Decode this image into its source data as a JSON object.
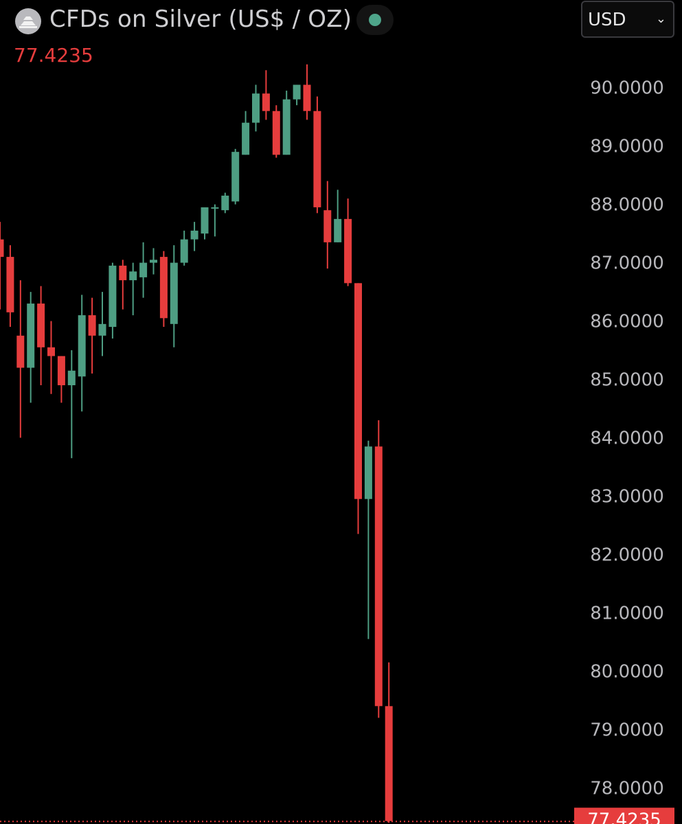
{
  "header": {
    "title": "CFDs on Silver (US$ / OZ)",
    "current_price": "77.4235",
    "currency": "USD",
    "logo_icon": "silver-bars-icon",
    "status_icon": "market-open-dot-icon"
  },
  "colors": {
    "up": "#4e9e83",
    "down": "#e63d3d",
    "price_line": "#e63d3d",
    "status": "#4ea58a"
  },
  "chart_data": {
    "type": "candlestick",
    "ylim": [
      77.25,
      91.15
    ],
    "yticks": [
      "90.0000",
      "89.0000",
      "88.0000",
      "87.0000",
      "86.0000",
      "85.0000",
      "84.0000",
      "83.0000",
      "82.0000",
      "81.0000",
      "80.0000",
      "79.0000",
      "78.0000"
    ],
    "last_price_label": "77.4235",
    "last_price": 77.4235,
    "candles": [
      {
        "o": 87.4,
        "h": 87.7,
        "c": 87.1,
        "l": 86.2
      },
      {
        "o": 87.1,
        "h": 87.3,
        "c": 86.15,
        "l": 85.9
      },
      {
        "o": 85.75,
        "h": 86.7,
        "c": 85.2,
        "l": 84.0
      },
      {
        "o": 85.2,
        "h": 86.5,
        "c": 86.3,
        "l": 84.6
      },
      {
        "o": 86.3,
        "h": 86.6,
        "c": 85.55,
        "l": 84.9
      },
      {
        "o": 85.55,
        "h": 86.0,
        "c": 85.4,
        "l": 84.75
      },
      {
        "o": 85.4,
        "h": 85.4,
        "c": 84.9,
        "l": 84.6
      },
      {
        "o": 84.9,
        "h": 85.5,
        "c": 85.15,
        "l": 83.65
      },
      {
        "o": 85.05,
        "h": 86.45,
        "c": 86.1,
        "l": 84.45
      },
      {
        "o": 86.1,
        "h": 86.4,
        "c": 85.75,
        "l": 85.1
      },
      {
        "o": 85.75,
        "h": 86.5,
        "c": 85.95,
        "l": 85.4
      },
      {
        "o": 85.9,
        "h": 87.0,
        "c": 86.95,
        "l": 85.7
      },
      {
        "o": 86.95,
        "h": 87.05,
        "c": 86.7,
        "l": 86.2
      },
      {
        "o": 86.7,
        "h": 87.0,
        "c": 86.85,
        "l": 86.1
      },
      {
        "o": 86.75,
        "h": 87.35,
        "c": 87.0,
        "l": 86.4
      },
      {
        "o": 87.0,
        "h": 87.25,
        "c": 87.05,
        "l": 86.8
      },
      {
        "o": 87.1,
        "h": 87.2,
        "c": 86.05,
        "l": 85.9
      },
      {
        "o": 85.95,
        "h": 87.3,
        "c": 87.0,
        "l": 85.55
      },
      {
        "o": 87.0,
        "h": 87.55,
        "c": 87.4,
        "l": 86.95
      },
      {
        "o": 87.4,
        "h": 87.7,
        "c": 87.55,
        "l": 87.2
      },
      {
        "o": 87.5,
        "h": 87.9,
        "c": 87.95,
        "l": 87.4
      },
      {
        "o": 87.95,
        "h": 88.0,
        "c": 87.95,
        "l": 87.45
      },
      {
        "o": 87.9,
        "h": 88.2,
        "c": 88.15,
        "l": 87.85
      },
      {
        "o": 88.05,
        "h": 88.95,
        "c": 88.9,
        "l": 88.0
      },
      {
        "o": 88.85,
        "h": 89.6,
        "c": 89.4,
        "l": 88.85
      },
      {
        "o": 89.4,
        "h": 90.05,
        "c": 89.9,
        "l": 89.25
      },
      {
        "o": 89.9,
        "h": 90.3,
        "c": 89.6,
        "l": 89.45
      },
      {
        "o": 89.6,
        "h": 89.7,
        "c": 88.85,
        "l": 88.8
      },
      {
        "o": 88.85,
        "h": 89.95,
        "c": 89.8,
        "l": 88.85
      },
      {
        "o": 89.8,
        "h": 90.05,
        "c": 90.05,
        "l": 89.7
      },
      {
        "o": 90.05,
        "h": 90.4,
        "c": 89.6,
        "l": 89.45
      },
      {
        "o": 89.6,
        "h": 89.85,
        "c": 87.95,
        "l": 87.85
      },
      {
        "o": 87.9,
        "h": 88.4,
        "c": 87.35,
        "l": 86.9
      },
      {
        "o": 87.35,
        "h": 88.25,
        "c": 87.75,
        "l": 87.35
      },
      {
        "o": 87.75,
        "h": 88.1,
        "c": 86.65,
        "l": 86.6
      },
      {
        "o": 86.65,
        "h": 86.65,
        "c": 82.95,
        "l": 82.35
      },
      {
        "o": 82.95,
        "h": 83.95,
        "c": 83.85,
        "l": 80.55
      },
      {
        "o": 83.85,
        "h": 84.3,
        "c": 79.4,
        "l": 79.2
      },
      {
        "o": 79.4,
        "h": 80.15,
        "c": 77.43,
        "l": 77.4
      }
    ]
  }
}
